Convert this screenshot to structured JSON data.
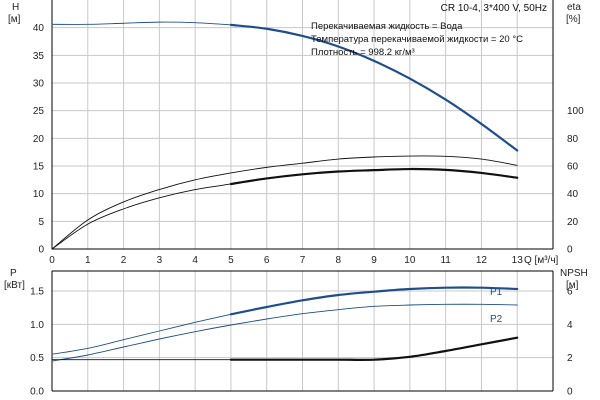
{
  "header": {
    "pump_model": "CR 10-4, 3*400 V, 50Hz",
    "info_lines": [
      "Перекачиваемая жидкость = Вода",
      "Температура перекачиваемой жидкости = 20 °C",
      "Плотность = 998.2 кг/м³"
    ]
  },
  "colors": {
    "curve_blue": "#1f4e8c",
    "curve_black": "#111111",
    "grid": "#c8c8c8",
    "axis": "#000000"
  },
  "chart_data": [
    {
      "type": "line",
      "panel": "top",
      "xlabel": "Q [м³/ч]",
      "ylabel": "H\n[м]",
      "y2label": "eta\n[%]",
      "xlim": [
        0,
        14
      ],
      "ylim": [
        0,
        45
      ],
      "y2lim": [
        0,
        180
      ],
      "x_ticks": [
        0,
        1,
        2,
        3,
        4,
        5,
        6,
        7,
        8,
        9,
        10,
        11,
        12,
        13
      ],
      "y_ticks": [
        0,
        5,
        10,
        15,
        20,
        25,
        30,
        35,
        40
      ],
      "y2_ticks": [
        0,
        20,
        40,
        60,
        80,
        100
      ],
      "series": [
        {
          "axis": "left",
          "color": "#1f4e8c",
          "thin": {
            "x": [
              0,
              1,
              2,
              3,
              4,
              5
            ],
            "y": [
              40.6,
              40.6,
              40.8,
              41.0,
              40.9,
              40.5
            ]
          },
          "thick": {
            "x": [
              5,
              6,
              7,
              8,
              9,
              10,
              11,
              12,
              13
            ],
            "y": [
              40.5,
              39.8,
              38.5,
              36.6,
              34.0,
              30.8,
              27.0,
              22.6,
              17.8
            ]
          }
        },
        {
          "axis": "right",
          "color": "#111111",
          "thin": {
            "x": [
              0,
              1,
              2,
              3,
              4,
              5,
              6,
              7,
              8,
              9,
              10,
              11,
              12,
              13
            ],
            "y": [
              0,
              21,
              34,
              43,
              50,
              55,
              59,
              62,
              65,
              66.5,
              67.2,
              67,
              65,
              60.5
            ]
          }
        },
        {
          "axis": "right",
          "color": "#111111",
          "thin": {
            "x": [
              0,
              1,
              2,
              3,
              4,
              5
            ],
            "y": [
              0,
              18,
              29,
              37,
              43,
              47
            ]
          },
          "thick": {
            "x": [
              5,
              6,
              7,
              8,
              9,
              10,
              11,
              12,
              13
            ],
            "y": [
              47,
              51,
              54,
              56,
              57,
              57.8,
              57.2,
              55,
              51.5
            ]
          }
        }
      ]
    },
    {
      "type": "line",
      "panel": "bottom",
      "xlabel": "",
      "ylabel": "P\n[кВт]",
      "y2label": "NPSH\n[м]",
      "xlim": [
        0,
        14
      ],
      "ylim": [
        0,
        1.8
      ],
      "y2lim": [
        0,
        7.2
      ],
      "y_ticks": [
        0.0,
        0.5,
        1.0,
        1.5
      ],
      "y_tick_labels": [
        "0.0",
        "0.5",
        "1.0",
        "1.5"
      ],
      "y2_ticks": [
        0,
        2,
        4,
        6
      ],
      "series": [
        {
          "name": "P1",
          "axis": "left",
          "color": "#1f4e8c",
          "thin": {
            "x": [
              0,
              1,
              2,
              3,
              4,
              5
            ],
            "y": [
              0.55,
              0.64,
              0.77,
              0.9,
              1.03,
              1.15
            ]
          },
          "thick": {
            "x": [
              5,
              6,
              7,
              8,
              9,
              10,
              11,
              12,
              13
            ],
            "y": [
              1.15,
              1.26,
              1.36,
              1.44,
              1.49,
              1.53,
              1.55,
              1.55,
              1.53
            ]
          }
        },
        {
          "name": "P2",
          "axis": "left",
          "color": "#1f4e8c",
          "thin": {
            "x": [
              0,
              1,
              2,
              3,
              4,
              5,
              6,
              7,
              8,
              9,
              10,
              11,
              12,
              13
            ],
            "y": [
              0.45,
              0.54,
              0.66,
              0.78,
              0.89,
              0.99,
              1.08,
              1.16,
              1.22,
              1.27,
              1.29,
              1.3,
              1.3,
              1.29
            ]
          }
        },
        {
          "axis": "right",
          "color": "#111111",
          "thin": {
            "x": [
              0,
              5
            ],
            "y": [
              1.88,
              1.88
            ]
          },
          "thick": {
            "x": [
              5,
              6,
              7,
              8,
              9,
              10,
              11,
              12,
              13
            ],
            "y": [
              1.88,
              1.88,
              1.88,
              1.88,
              1.88,
              2.05,
              2.4,
              2.8,
              3.2
            ]
          }
        }
      ]
    }
  ]
}
